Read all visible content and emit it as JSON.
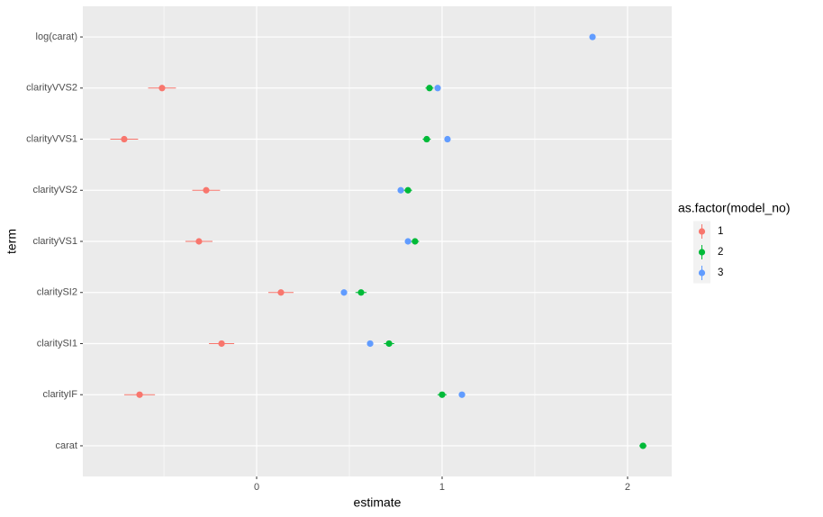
{
  "chart_data": {
    "type": "pointrange",
    "x_label": "estimate",
    "y_label": "term",
    "categories": [
      "carat",
      "clarityIF",
      "claritySI1",
      "claritySI2",
      "clarityVS1",
      "clarityVS2",
      "clarityVVS1",
      "clarityVVS2",
      "log(carat)"
    ],
    "legend_title": "as.factor(model_no)",
    "series": [
      {
        "name": "1",
        "color": "#F8766D",
        "values": [
          null,
          -0.631,
          -0.189,
          0.131,
          -0.311,
          -0.272,
          -0.714,
          -0.51,
          null
        ],
        "errors": [
          null,
          0.083,
          0.068,
          0.068,
          0.073,
          0.075,
          0.075,
          0.075,
          null
        ]
      },
      {
        "name": "2",
        "color": "#00BA38",
        "values": [
          2.083,
          1.0,
          0.714,
          0.563,
          0.854,
          0.816,
          0.917,
          0.932,
          null
        ],
        "errors": [
          0.02,
          0.025,
          0.028,
          0.03,
          0.022,
          0.022,
          0.022,
          0.022,
          null
        ]
      },
      {
        "name": "3",
        "color": "#619CFF",
        "values": [
          null,
          1.107,
          0.612,
          0.471,
          0.816,
          0.777,
          1.029,
          0.976,
          1.811
        ],
        "errors": [
          null,
          0.012,
          0.012,
          0.012,
          0.012,
          0.012,
          0.012,
          0.012,
          0.015
        ]
      }
    ],
    "xlim": [
      -0.937,
      2.238
    ],
    "xticks": [
      0,
      1,
      2
    ],
    "minor_xticks": [
      -0.5,
      0.5,
      1.5
    ],
    "grid": true
  }
}
